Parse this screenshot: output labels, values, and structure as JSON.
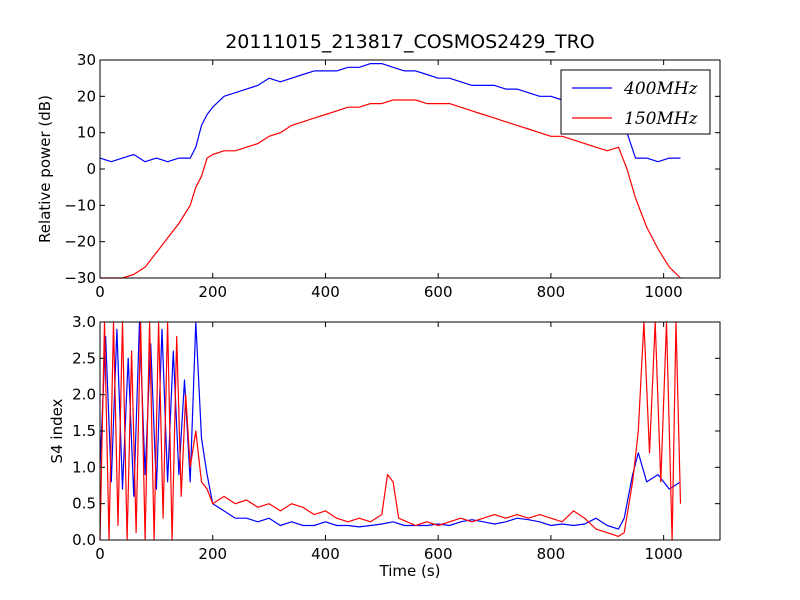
{
  "chart_data": [
    {
      "type": "line",
      "title": "20111015_213817_COSMOS2429_TRO",
      "xlabel": "",
      "ylabel": "Relative power (dB)",
      "xlim": [
        0,
        1100
      ],
      "ylim": [
        -30,
        30
      ],
      "xticks": [
        "0",
        "200",
        "400",
        "600",
        "800",
        "1000"
      ],
      "yticks": [
        "−30",
        "−20",
        "−10",
        "0",
        "10",
        "20",
        "30"
      ],
      "legend_position": "top-right",
      "series": [
        {
          "name": "400MHz",
          "color": "#0000ff",
          "points": [
            [
              0,
              3
            ],
            [
              20,
              2
            ],
            [
              40,
              3
            ],
            [
              60,
              4
            ],
            [
              80,
              2
            ],
            [
              100,
              3
            ],
            [
              120,
              2
            ],
            [
              140,
              3
            ],
            [
              160,
              3
            ],
            [
              170,
              6
            ],
            [
              180,
              12
            ],
            [
              190,
              15
            ],
            [
              200,
              17
            ],
            [
              220,
              20
            ],
            [
              240,
              21
            ],
            [
              260,
              22
            ],
            [
              280,
              23
            ],
            [
              300,
              25
            ],
            [
              320,
              24
            ],
            [
              340,
              25
            ],
            [
              360,
              26
            ],
            [
              380,
              27
            ],
            [
              400,
              27
            ],
            [
              420,
              27
            ],
            [
              440,
              28
            ],
            [
              460,
              28
            ],
            [
              480,
              29
            ],
            [
              500,
              29
            ],
            [
              520,
              28
            ],
            [
              540,
              27
            ],
            [
              560,
              27
            ],
            [
              580,
              26
            ],
            [
              600,
              25
            ],
            [
              620,
              25
            ],
            [
              640,
              24
            ],
            [
              660,
              23
            ],
            [
              680,
              23
            ],
            [
              700,
              23
            ],
            [
              720,
              22
            ],
            [
              740,
              22
            ],
            [
              760,
              21
            ],
            [
              780,
              20
            ],
            [
              800,
              20
            ],
            [
              820,
              19
            ],
            [
              840,
              18
            ],
            [
              860,
              17
            ],
            [
              880,
              17
            ],
            [
              900,
              16
            ],
            [
              920,
              15
            ],
            [
              935,
              10
            ],
            [
              950,
              3
            ],
            [
              970,
              3
            ],
            [
              990,
              2
            ],
            [
              1010,
              3
            ],
            [
              1030,
              3
            ]
          ]
        },
        {
          "name": "150MHz",
          "color": "#ff0000",
          "points": [
            [
              0,
              -30
            ],
            [
              40,
              -30
            ],
            [
              60,
              -29
            ],
            [
              80,
              -27
            ],
            [
              100,
              -23
            ],
            [
              120,
              -19
            ],
            [
              140,
              -15
            ],
            [
              160,
              -10
            ],
            [
              170,
              -5
            ],
            [
              180,
              -2
            ],
            [
              190,
              3
            ],
            [
              200,
              4
            ],
            [
              220,
              5
            ],
            [
              240,
              5
            ],
            [
              260,
              6
            ],
            [
              280,
              7
            ],
            [
              300,
              9
            ],
            [
              320,
              10
            ],
            [
              340,
              12
            ],
            [
              360,
              13
            ],
            [
              380,
              14
            ],
            [
              400,
              15
            ],
            [
              420,
              16
            ],
            [
              440,
              17
            ],
            [
              460,
              17
            ],
            [
              480,
              18
            ],
            [
              500,
              18
            ],
            [
              520,
              19
            ],
            [
              540,
              19
            ],
            [
              560,
              19
            ],
            [
              580,
              18
            ],
            [
              600,
              18
            ],
            [
              620,
              18
            ],
            [
              640,
              17
            ],
            [
              660,
              16
            ],
            [
              680,
              15
            ],
            [
              700,
              14
            ],
            [
              720,
              13
            ],
            [
              740,
              12
            ],
            [
              760,
              11
            ],
            [
              780,
              10
            ],
            [
              800,
              9
            ],
            [
              820,
              9
            ],
            [
              840,
              8
            ],
            [
              860,
              7
            ],
            [
              880,
              6
            ],
            [
              900,
              5
            ],
            [
              920,
              6
            ],
            [
              935,
              0
            ],
            [
              950,
              -8
            ],
            [
              970,
              -16
            ],
            [
              990,
              -22
            ],
            [
              1010,
              -27
            ],
            [
              1030,
              -30
            ]
          ]
        }
      ]
    },
    {
      "type": "line",
      "title": "",
      "xlabel": "Time (s)",
      "ylabel": "S4 index",
      "xlim": [
        0,
        1100
      ],
      "ylim": [
        0,
        3
      ],
      "xticks": [
        "0",
        "200",
        "400",
        "600",
        "800",
        "1000"
      ],
      "yticks": [
        "0.0",
        "0.5",
        "1.0",
        "1.5",
        "2.0",
        "2.5",
        "3.0"
      ],
      "series": [
        {
          "name": "400MHz",
          "color": "#0000ff",
          "points": [
            [
              0,
              1.0
            ],
            [
              10,
              2.8
            ],
            [
              20,
              0.8
            ],
            [
              30,
              2.9
            ],
            [
              40,
              0.7
            ],
            [
              50,
              2.5
            ],
            [
              60,
              0.6
            ],
            [
              70,
              3.0
            ],
            [
              80,
              0.9
            ],
            [
              90,
              2.7
            ],
            [
              100,
              0.7
            ],
            [
              110,
              2.9
            ],
            [
              120,
              0.8
            ],
            [
              130,
              2.6
            ],
            [
              140,
              0.9
            ],
            [
              150,
              2.2
            ],
            [
              160,
              0.8
            ],
            [
              170,
              3.0
            ],
            [
              180,
              1.4
            ],
            [
              190,
              0.9
            ],
            [
              200,
              0.5
            ],
            [
              220,
              0.4
            ],
            [
              240,
              0.3
            ],
            [
              260,
              0.3
            ],
            [
              280,
              0.25
            ],
            [
              300,
              0.3
            ],
            [
              320,
              0.2
            ],
            [
              340,
              0.25
            ],
            [
              360,
              0.2
            ],
            [
              380,
              0.2
            ],
            [
              400,
              0.25
            ],
            [
              420,
              0.2
            ],
            [
              440,
              0.2
            ],
            [
              460,
              0.18
            ],
            [
              480,
              0.2
            ],
            [
              500,
              0.22
            ],
            [
              520,
              0.25
            ],
            [
              540,
              0.2
            ],
            [
              560,
              0.2
            ],
            [
              580,
              0.2
            ],
            [
              600,
              0.22
            ],
            [
              620,
              0.2
            ],
            [
              640,
              0.25
            ],
            [
              660,
              0.28
            ],
            [
              680,
              0.25
            ],
            [
              700,
              0.22
            ],
            [
              720,
              0.25
            ],
            [
              740,
              0.3
            ],
            [
              760,
              0.28
            ],
            [
              780,
              0.25
            ],
            [
              800,
              0.2
            ],
            [
              820,
              0.22
            ],
            [
              840,
              0.2
            ],
            [
              860,
              0.22
            ],
            [
              880,
              0.3
            ],
            [
              900,
              0.2
            ],
            [
              920,
              0.15
            ],
            [
              930,
              0.3
            ],
            [
              945,
              0.9
            ],
            [
              955,
              1.2
            ],
            [
              970,
              0.8
            ],
            [
              990,
              0.9
            ],
            [
              1010,
              0.7
            ],
            [
              1030,
              0.8
            ]
          ]
        },
        {
          "name": "150MHz",
          "color": "#ff0000",
          "points": [
            [
              0,
              0.0
            ],
            [
              8,
              3.0
            ],
            [
              16,
              0.0
            ],
            [
              24,
              3.0
            ],
            [
              32,
              0.2
            ],
            [
              40,
              3.0
            ],
            [
              48,
              0.0
            ],
            [
              56,
              2.6
            ],
            [
              64,
              0.1
            ],
            [
              72,
              3.0
            ],
            [
              80,
              0.0
            ],
            [
              88,
              3.0
            ],
            [
              96,
              0.0
            ],
            [
              104,
              3.0
            ],
            [
              112,
              0.3
            ],
            [
              120,
              3.0
            ],
            [
              128,
              0.0
            ],
            [
              136,
              2.8
            ],
            [
              144,
              0.6
            ],
            [
              152,
              2.0
            ],
            [
              160,
              1.0
            ],
            [
              170,
              1.5
            ],
            [
              180,
              0.8
            ],
            [
              190,
              0.7
            ],
            [
              200,
              0.5
            ],
            [
              220,
              0.6
            ],
            [
              240,
              0.5
            ],
            [
              260,
              0.55
            ],
            [
              280,
              0.45
            ],
            [
              300,
              0.5
            ],
            [
              320,
              0.4
            ],
            [
              340,
              0.5
            ],
            [
              360,
              0.45
            ],
            [
              380,
              0.35
            ],
            [
              400,
              0.4
            ],
            [
              420,
              0.3
            ],
            [
              440,
              0.25
            ],
            [
              460,
              0.3
            ],
            [
              480,
              0.25
            ],
            [
              500,
              0.35
            ],
            [
              510,
              0.9
            ],
            [
              520,
              0.8
            ],
            [
              530,
              0.3
            ],
            [
              560,
              0.2
            ],
            [
              580,
              0.25
            ],
            [
              600,
              0.2
            ],
            [
              620,
              0.25
            ],
            [
              640,
              0.3
            ],
            [
              660,
              0.25
            ],
            [
              680,
              0.3
            ],
            [
              700,
              0.35
            ],
            [
              720,
              0.3
            ],
            [
              740,
              0.35
            ],
            [
              760,
              0.3
            ],
            [
              780,
              0.35
            ],
            [
              800,
              0.3
            ],
            [
              820,
              0.25
            ],
            [
              840,
              0.4
            ],
            [
              860,
              0.3
            ],
            [
              880,
              0.15
            ],
            [
              900,
              0.1
            ],
            [
              920,
              0.05
            ],
            [
              930,
              0.1
            ],
            [
              945,
              0.8
            ],
            [
              955,
              1.5
            ],
            [
              965,
              3.0
            ],
            [
              975,
              1.2
            ],
            [
              985,
              3.0
            ],
            [
              995,
              0.8
            ],
            [
              1005,
              3.0
            ],
            [
              1015,
              0.0
            ],
            [
              1022,
              3.0
            ],
            [
              1030,
              0.5
            ]
          ]
        }
      ]
    }
  ]
}
